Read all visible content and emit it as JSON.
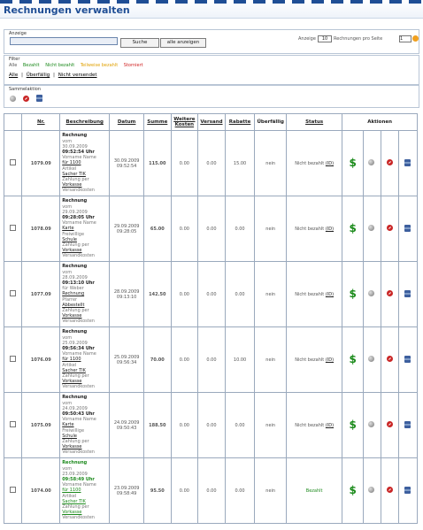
{
  "page": {
    "title": "Rechnungen verwalten"
  },
  "search": {
    "label": "Anzeige",
    "value": "",
    "search_button": "Suche",
    "show_all_button": "alle anzeigen"
  },
  "per_page": {
    "before": "Anzeige",
    "value": "10",
    "after": "Rechnungen pro Seite",
    "page_value": "1"
  },
  "filter": {
    "label": "Filter",
    "items": [
      {
        "label": "Alle",
        "color": "#555555"
      },
      {
        "label": "Bezahlt",
        "color": "#1d8a1d"
      },
      {
        "label": "Nicht bezahlt",
        "color": "#1d8a1d"
      },
      {
        "label": "Teilweise bezahlt",
        "color": "#e0a000"
      },
      {
        "label": "Storniert",
        "color": "#d02020"
      }
    ],
    "tabs": {
      "all": "Alle",
      "overdue": "Überfällig",
      "not_sent": "Nicht versendet",
      "sep": "|"
    }
  },
  "mass_action": {
    "label": "Sammelaktion"
  },
  "table": {
    "headers": {
      "nr": "Nr.",
      "desc": "Beschreibung",
      "date": "Datum",
      "sum": "Summe",
      "costs": "Weitere Kosten",
      "shipping": "Versand",
      "discount": "Rabatte",
      "overdue": "Überfällig",
      "status": "Status",
      "actions": "Aktionen"
    },
    "rows": [
      {
        "nr": "1079.09",
        "title": "Rechnung",
        "from": "vom",
        "date_line": "30.09.2009",
        "time_line": "09:52:54 Uhr",
        "line_a": "Vorname Name",
        "link1": "für 1100",
        "line_b": "Artikel",
        "link2": "Sacher TIK",
        "line_c": "Zahlung per",
        "line_d": "Vorkasse",
        "line_e": "Versandkosten",
        "date": "30.09.2009 09:52:54",
        "sum": "115.00",
        "costs": "0.00",
        "shipping": "0.00",
        "discount": "15.00",
        "overdue": "nein",
        "status": "Nicht bezahlt",
        "status_link": "(ID)",
        "green": false
      },
      {
        "nr": "1078.09",
        "title": "Rechnung",
        "from": "vom",
        "date_line": "29.09.2009",
        "time_line": "09:28:05 Uhr",
        "line_a": "Vorname Name",
        "link1": "Karte",
        "line_b": "Freiwillige",
        "link2": "Schule",
        "line_c": "Zahlung per",
        "line_d": "Vorkasse",
        "line_e": "Versandkosten",
        "date": "29.09.2009 09:28:05",
        "sum": "65.00",
        "costs": "0.00",
        "shipping": "0.00",
        "discount": "0.00",
        "overdue": "nein",
        "status": "Nicht bezahlt",
        "status_link": "(ID)",
        "green": false
      },
      {
        "nr": "1077.09",
        "title": "Rechnung",
        "from": "vom",
        "date_line": "28.09.2009",
        "time_line": "09:13:10 Uhr",
        "line_a": "für Weber",
        "link1": "Rechnung",
        "line_b": "Pfarrer",
        "link2": "Abbestellt",
        "line_c": "Zahlung per",
        "line_d": "Vorkasse",
        "line_e": "Versandkosten",
        "date": "28.09.2009 09:13:10",
        "sum": "142.50",
        "costs": "0.00",
        "shipping": "0.00",
        "discount": "0.00",
        "overdue": "nein",
        "status": "Nicht bezahlt",
        "status_link": "(ID)",
        "green": false
      },
      {
        "nr": "1076.09",
        "title": "Rechnung",
        "from": "vom",
        "date_line": "25.09.2009",
        "time_line": "09:56:34 Uhr",
        "line_a": "Vorname Name",
        "link1": "für 1100",
        "line_b": "Artikel",
        "link2": "Sacher TIK",
        "line_c": "Zahlung per",
        "line_d": "Vorkasse",
        "line_e": "Versandkosten",
        "date": "25.09.2009 09:56:34",
        "sum": "70.00",
        "costs": "0.00",
        "shipping": "0.00",
        "discount": "10.00",
        "overdue": "nein",
        "status": "Nicht bezahlt",
        "status_link": "(ID)",
        "green": false
      },
      {
        "nr": "1075.09",
        "title": "Rechnung",
        "from": "vom",
        "date_line": "24.09.2009",
        "time_line": "09:50:43 Uhr",
        "line_a": "Vorname Name",
        "link1": "Karte",
        "line_b": "Freiwillige",
        "link2": "Schule",
        "line_c": "Zahlung per",
        "line_d": "Vorkasse",
        "line_e": "Versandkosten",
        "date": "24.09.2009 09:50:43",
        "sum": "188.50",
        "costs": "0.00",
        "shipping": "0.00",
        "discount": "0.00",
        "overdue": "nein",
        "status": "Nicht bezahlt",
        "status_link": "(ID)",
        "green": false
      },
      {
        "nr": "1074.00",
        "title": "Rechnung",
        "from": "vom",
        "date_line": "23.09.2009",
        "time_line": "09:58:49 Uhr",
        "line_a": "Vorname Name",
        "link1": "für 1100",
        "line_b": "Artikel",
        "link2": "Sacher TIK",
        "line_c": "Zahlung per",
        "line_d": "Vorkasse",
        "line_e": "Versandkosten",
        "date": "23.09.2009 09:58:49",
        "sum": "95.50",
        "costs": "0.00",
        "shipping": "0.00",
        "discount": "0.00",
        "overdue": "nein",
        "status": "Bezahlt",
        "status_link": "",
        "green": true
      }
    ]
  },
  "colors": {
    "title": "#1f4e95",
    "paid": "#1d8a1d",
    "border": "#9aa9bd"
  }
}
